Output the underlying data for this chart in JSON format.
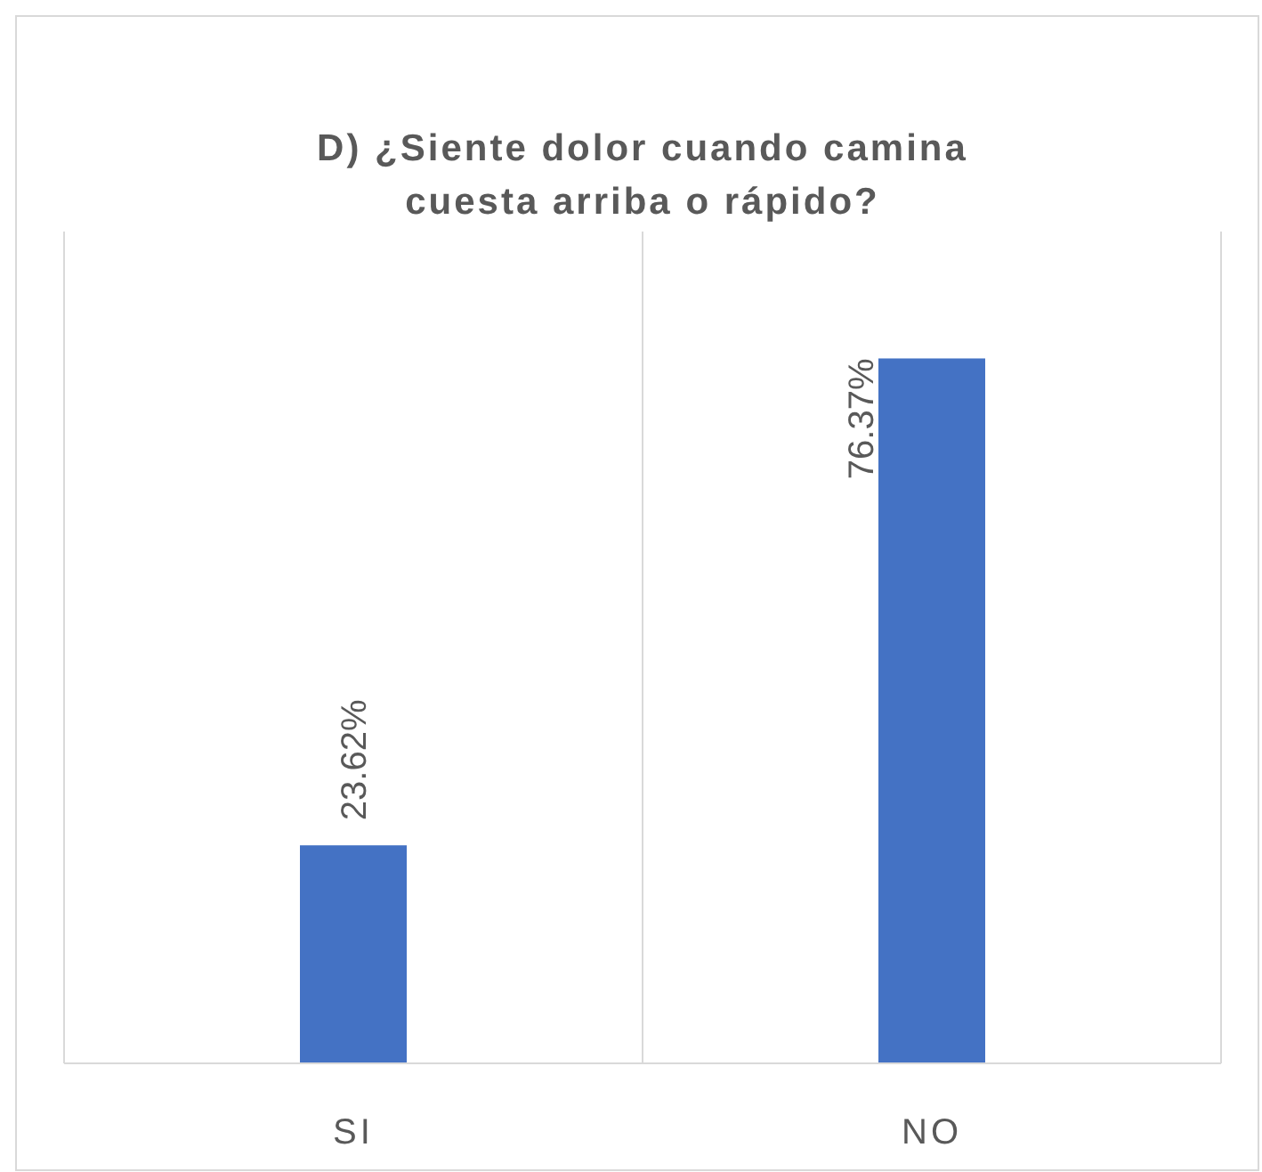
{
  "chart_data": {
    "type": "bar",
    "title": "D) ¿Siente dolor cuando camina cuesta arriba o rápido?",
    "categories": [
      "SI",
      "NO"
    ],
    "values": [
      23.62,
      76.37
    ],
    "value_labels": [
      "23.62%",
      "76.37%"
    ],
    "color": "#4472c4",
    "grid": "x"
  }
}
